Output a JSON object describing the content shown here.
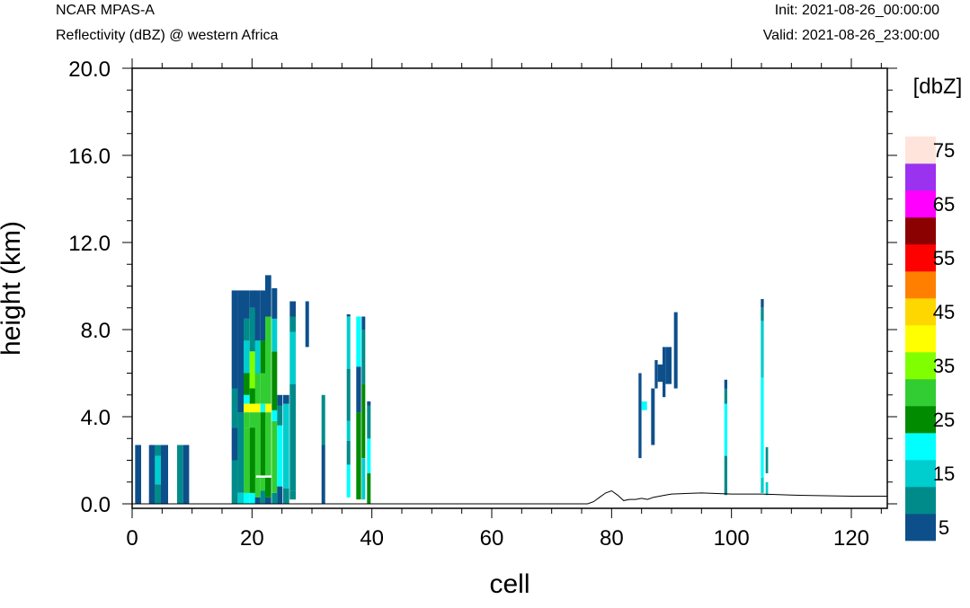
{
  "header": {
    "model": "NCAR MPAS-A",
    "subtitle": "Reflectivity (dBZ) @ western Africa",
    "init": "Init: 2021-08-26_00:00:00",
    "valid": "Valid: 2021-08-26_23:00:00"
  },
  "chart_data": {
    "type": "heatmap",
    "xlabel": "cell",
    "ylabel": "height (km)",
    "xlim": [
      0,
      126
    ],
    "ylim": [
      0,
      20
    ],
    "xticks": [
      "0",
      "20",
      "40",
      "60",
      "80",
      "100",
      "120"
    ],
    "yticks": [
      "0.0",
      "4.0",
      "8.0",
      "12.0",
      "16.0",
      "20.0"
    ],
    "colorbar": {
      "title": "[dbZ]",
      "tick_labels": [
        "5",
        "15",
        "25",
        "35",
        "45",
        "55",
        "65",
        "75"
      ],
      "levels": [
        5,
        10,
        15,
        20,
        25,
        30,
        35,
        40,
        45,
        50,
        55,
        60,
        65,
        70,
        75
      ],
      "colors": [
        "#0d4f8b",
        "#008b8b",
        "#00cdcd",
        "#00ffff",
        "#008b00",
        "#32cd32",
        "#7fff00",
        "#ffff00",
        "#ffd700",
        "#ff8000",
        "#ff0000",
        "#8b0000",
        "#ff00ff",
        "#9a32f0",
        "#ffe4dc"
      ]
    },
    "terrain": {
      "x": [
        0,
        76,
        77,
        78,
        79,
        80,
        81,
        82,
        83,
        84,
        85,
        86,
        87,
        88,
        89,
        90,
        95,
        100,
        105,
        110,
        120,
        126
      ],
      "y": [
        0,
        0,
        0.1,
        0.3,
        0.5,
        0.6,
        0.4,
        0.15,
        0.2,
        0.2,
        0.25,
        0.2,
        0.3,
        0.35,
        0.4,
        0.45,
        0.5,
        0.45,
        0.45,
        0.4,
        0.35,
        0.35
      ]
    },
    "cells": [
      {
        "x": 0.5,
        "w": 1,
        "segments": [
          [
            0,
            2.7,
            5
          ]
        ]
      },
      {
        "x": 2.8,
        "w": 1,
        "segments": [
          [
            0,
            2.7,
            5
          ]
        ]
      },
      {
        "x": 3.8,
        "w": 1,
        "segments": [
          [
            0,
            0.9,
            10
          ],
          [
            0.9,
            2.2,
            15
          ],
          [
            2.2,
            2.7,
            10
          ]
        ]
      },
      {
        "x": 4.8,
        "w": 1.2,
        "segments": [
          [
            0,
            2.7,
            5
          ]
        ]
      },
      {
        "x": 7.5,
        "w": 1,
        "segments": [
          [
            0,
            2.7,
            10
          ]
        ]
      },
      {
        "x": 8.5,
        "w": 1,
        "segments": [
          [
            0,
            2.7,
            5
          ]
        ]
      },
      {
        "x": 16.6,
        "w": 1,
        "segments": [
          [
            0,
            2.0,
            10
          ],
          [
            2.0,
            3.5,
            5
          ],
          [
            3.5,
            5.3,
            10
          ],
          [
            5.3,
            9.8,
            5
          ]
        ]
      },
      {
        "x": 17.6,
        "w": 1,
        "segments": [
          [
            0,
            0.5,
            15
          ],
          [
            0.5,
            4.2,
            10
          ],
          [
            4.2,
            5.3,
            5
          ],
          [
            5.3,
            9.8,
            5
          ]
        ]
      },
      {
        "x": 18.6,
        "w": 1,
        "segments": [
          [
            0,
            0.5,
            20
          ],
          [
            0.5,
            3.5,
            30
          ],
          [
            3.5,
            4.2,
            30
          ],
          [
            4.2,
            4.6,
            40
          ],
          [
            4.6,
            5.0,
            20
          ],
          [
            5.0,
            6.0,
            25
          ],
          [
            6.0,
            7.5,
            15
          ],
          [
            7.5,
            8.5,
            10
          ],
          [
            8.5,
            9.8,
            5
          ]
        ]
      },
      {
        "x": 19.6,
        "w": 1,
        "segments": [
          [
            0,
            0.5,
            20
          ],
          [
            0.5,
            3.5,
            25
          ],
          [
            3.5,
            4.2,
            30
          ],
          [
            4.2,
            4.6,
            40
          ],
          [
            4.6,
            5.3,
            25
          ],
          [
            5.3,
            7.0,
            35
          ],
          [
            7.0,
            9.0,
            10
          ],
          [
            9.0,
            9.8,
            5
          ]
        ]
      },
      {
        "x": 20.5,
        "w": 0.9,
        "segments": [
          [
            0,
            0.3,
            5
          ],
          [
            0.3,
            1.2,
            30
          ],
          [
            1.3,
            4.2,
            30
          ],
          [
            4.2,
            4.6,
            40
          ],
          [
            4.6,
            6.0,
            30
          ],
          [
            6.0,
            7.5,
            15
          ],
          [
            7.5,
            9.8,
            5
          ]
        ]
      },
      {
        "x": 21.4,
        "w": 0.8,
        "segments": [
          [
            0,
            0.6,
            10
          ],
          [
            0.6,
            1.2,
            30
          ],
          [
            1.3,
            4.2,
            25
          ],
          [
            4.2,
            4.6,
            20
          ],
          [
            4.6,
            6.0,
            30
          ],
          [
            6.0,
            7.5,
            25
          ],
          [
            7.5,
            9.8,
            5
          ]
        ]
      },
      {
        "x": 22.2,
        "w": 1,
        "segments": [
          [
            0,
            0.3,
            5
          ],
          [
            0.3,
            1.2,
            25
          ],
          [
            1.3,
            4.2,
            30
          ],
          [
            4.2,
            4.6,
            40
          ],
          [
            4.6,
            8.6,
            30
          ],
          [
            8.6,
            10.5,
            5
          ]
        ]
      },
      {
        "x": 23.3,
        "w": 0.9,
        "segments": [
          [
            0,
            0.5,
            10
          ],
          [
            0.5,
            3.8,
            30
          ],
          [
            3.8,
            4.3,
            20
          ],
          [
            4.3,
            7.0,
            25
          ],
          [
            7.0,
            8.5,
            15
          ],
          [
            8.5,
            9.9,
            5
          ]
        ]
      },
      {
        "x": 24.2,
        "w": 0.9,
        "segments": [
          [
            0,
            0.8,
            5
          ],
          [
            0.8,
            3.6,
            20
          ],
          [
            3.6,
            4.5,
            10
          ],
          [
            4.5,
            5.0,
            5
          ]
        ]
      },
      {
        "x": 25.2,
        "w": 1,
        "segments": [
          [
            0,
            0.7,
            10
          ],
          [
            0.7,
            4.6,
            15
          ],
          [
            4.6,
            5.0,
            5
          ]
        ]
      },
      {
        "x": 26.3,
        "w": 1,
        "segments": [
          [
            0.2,
            0.6,
            10
          ],
          [
            0.6,
            5.5,
            10
          ],
          [
            5.5,
            7.9,
            15
          ],
          [
            7.9,
            8.6,
            10
          ],
          [
            8.6,
            9.3,
            5
          ]
        ]
      },
      {
        "x": 28.9,
        "w": 0.6,
        "segments": [
          [
            7.2,
            9.3,
            5
          ]
        ]
      },
      {
        "x": 31.6,
        "w": 0.6,
        "segments": [
          [
            0,
            2.7,
            5
          ],
          [
            2.7,
            5.0,
            10
          ]
        ]
      },
      {
        "x": 35.8,
        "w": 0.6,
        "segments": [
          [
            0.3,
            1.8,
            20
          ],
          [
            1.8,
            2.9,
            10
          ],
          [
            2.9,
            3.8,
            15
          ],
          [
            3.8,
            6.2,
            10
          ],
          [
            6.2,
            8.6,
            15
          ],
          [
            8.6,
            8.7,
            5
          ]
        ]
      },
      {
        "x": 37.4,
        "w": 0.8,
        "segments": [
          [
            0.2,
            4.2,
            25
          ],
          [
            4.2,
            6.3,
            5
          ],
          [
            6.3,
            8.6,
            20
          ]
        ]
      },
      {
        "x": 38.3,
        "w": 0.6,
        "segments": [
          [
            0.2,
            2.1,
            15
          ],
          [
            2.1,
            5.5,
            25
          ],
          [
            5.5,
            8.0,
            10
          ],
          [
            8.0,
            8.6,
            5
          ]
        ]
      },
      {
        "x": 39.2,
        "w": 0.6,
        "segments": [
          [
            0,
            1.4,
            25
          ],
          [
            1.4,
            3.0,
            20
          ],
          [
            3.0,
            4.5,
            10
          ],
          [
            4.5,
            4.7,
            5
          ]
        ]
      },
      {
        "x": 84.5,
        "w": 0.5,
        "segments": [
          [
            2.1,
            6.0,
            5
          ]
        ]
      },
      {
        "x": 85.0,
        "w": 0.9,
        "segments": [
          [
            4.3,
            4.7,
            20
          ]
        ]
      },
      {
        "x": 86.6,
        "w": 0.6,
        "segments": [
          [
            2.7,
            5.3,
            5
          ]
        ]
      },
      {
        "x": 87.2,
        "w": 0.5,
        "segments": [
          [
            5.3,
            6.6,
            5
          ]
        ]
      },
      {
        "x": 87.7,
        "w": 0.8,
        "segments": [
          [
            5.6,
            6.4,
            5
          ]
        ]
      },
      {
        "x": 88.5,
        "w": 0.5,
        "segments": [
          [
            4.9,
            7.2,
            5
          ]
        ]
      },
      {
        "x": 89.0,
        "w": 1.0,
        "segments": [
          [
            5.5,
            7.2,
            5
          ]
        ]
      },
      {
        "x": 90.4,
        "w": 0.6,
        "segments": [
          [
            5.3,
            8.8,
            5
          ]
        ]
      },
      {
        "x": 98.8,
        "w": 0.5,
        "segments": [
          [
            0.4,
            2.2,
            10
          ],
          [
            2.2,
            4.6,
            20
          ],
          [
            4.6,
            5.3,
            10
          ],
          [
            5.3,
            5.7,
            5
          ]
        ]
      },
      {
        "x": 104.9,
        "w": 0.5,
        "segments": [
          [
            0.5,
            1.2,
            15
          ],
          [
            1.2,
            5.8,
            20
          ],
          [
            5.8,
            8.4,
            15
          ],
          [
            8.4,
            9.0,
            10
          ],
          [
            9.0,
            9.4,
            5
          ]
        ]
      },
      {
        "x": 105.7,
        "w": 0.4,
        "segments": [
          [
            0.4,
            1.0,
            15
          ],
          [
            1.4,
            2.6,
            10
          ]
        ]
      }
    ]
  }
}
